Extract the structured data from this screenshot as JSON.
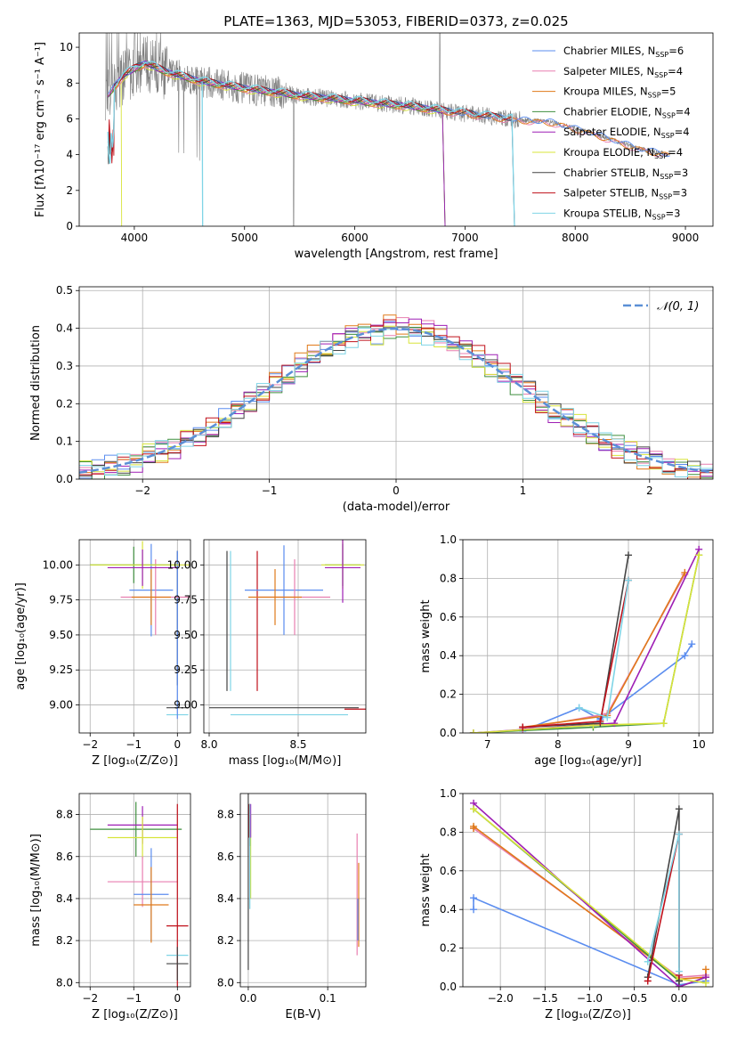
{
  "colors": {
    "chabrier_miles": "#5b8def",
    "salpeter_miles": "#e87fb0",
    "kroupa_miles": "#e07a1a",
    "chabrier_elodie": "#3f8f3f",
    "salpeter_elodie": "#9e1fb5",
    "kroupa_elodie": "#d8e43a",
    "chabrier_stelib": "#444444",
    "salpeter_stelib": "#c0101a",
    "kroupa_stelib": "#7fd4e6",
    "observed": "#808080",
    "gaussian": "#5b8fd6",
    "grid": "#b0b0b0"
  },
  "chart_data": [
    {
      "id": "spectrum",
      "type": "line",
      "title": "PLATE=1363, MJD=53053, FIBERID=0373, z=0.025",
      "xlabel": "wavelength [Angstrom, rest frame]",
      "ylabel": "Flux [fλ10⁻¹⁷ erg cm⁻² s⁻¹ A⁻¹]",
      "xlim": [
        3500,
        9250
      ],
      "ylim": [
        0,
        10.8
      ],
      "xticks": [
        4000,
        5000,
        6000,
        7000,
        8000,
        9000
      ],
      "yticks": [
        0,
        2,
        4,
        6,
        8,
        10
      ],
      "grid": false,
      "legend_position": "top-right",
      "legend": [
        {
          "key": "chabrier_miles",
          "label": "Chabrier MILES, N",
          "sub": "SSP",
          "tail": "=6"
        },
        {
          "key": "salpeter_miles",
          "label": "Salpeter MILES, N",
          "sub": "SSP",
          "tail": "=4"
        },
        {
          "key": "kroupa_miles",
          "label": "Kroupa MILES, N",
          "sub": "SSP",
          "tail": "=5"
        },
        {
          "key": "chabrier_elodie",
          "label": "Chabrier ELODIE, N",
          "sub": "SSP",
          "tail": "=4"
        },
        {
          "key": "salpeter_elodie",
          "label": "Salpeter ELODIE, N",
          "sub": "SSP",
          "tail": "=4"
        },
        {
          "key": "kroupa_elodie",
          "label": "Kroupa ELODIE, N",
          "sub": "SSP",
          "tail": "=4"
        },
        {
          "key": "chabrier_stelib",
          "label": "Chabrier STELIB, N",
          "sub": "SSP",
          "tail": "=3"
        },
        {
          "key": "salpeter_stelib",
          "label": "Salpeter STELIB, N",
          "sub": "SSP",
          "tail": "=3"
        },
        {
          "key": "kroupa_stelib",
          "label": "Kroupa STELIB, N",
          "sub": "SSP",
          "tail": "=3"
        }
      ],
      "observed_trend": {
        "x": [
          3740,
          3900,
          4000,
          4100,
          4300,
          4600,
          5000,
          5500,
          6000,
          6500,
          7000,
          7400,
          7800,
          8200,
          8600,
          8850
        ],
        "y": [
          7.2,
          8.4,
          8.8,
          9.1,
          8.6,
          8.1,
          7.7,
          7.3,
          7.0,
          6.7,
          6.3,
          6.0,
          5.8,
          5.1,
          4.3,
          4.0
        ]
      }
    },
    {
      "id": "residuals",
      "type": "histogram",
      "xlabel": "(data-model)/error",
      "ylabel": "Normed distribution",
      "xlim": [
        -2.5,
        2.5
      ],
      "ylim": [
        0,
        0.51
      ],
      "xticks": [
        -2,
        -1,
        0,
        1,
        2
      ],
      "yticks": [
        0,
        0.1,
        0.2,
        0.3,
        0.4,
        0.5
      ],
      "grid": true,
      "legend_position": "top-right",
      "legend_label": "𝒩(0, 1)",
      "bin_width": 0.1
    },
    {
      "id": "age_vs_z",
      "type": "errorbar",
      "xlabel": "Z [log₁₀(Z/Z⊙)]",
      "ylabel": "age  [log₁₀(age/yr)]",
      "xlim": [
        -2.25,
        0.3
      ],
      "ylim": [
        8.8,
        10.18
      ],
      "xticks": [
        -2,
        -1,
        0
      ],
      "yticks": [
        9.0,
        9.25,
        9.5,
        9.75,
        10.0
      ],
      "grid": true,
      "points": [
        {
          "s": "kroupa_stelib",
          "x": 0.0,
          "y": 8.93,
          "xerr": 0.25,
          "yerr": 0
        },
        {
          "s": "chabrier_stelib",
          "x": 0.0,
          "y": 8.98,
          "xerr": 0.25,
          "yerr": 0
        },
        {
          "s": "chabrier_stelib",
          "x": 0.0,
          "y": 9.62,
          "xerr": 0,
          "yerr": 0.48
        },
        {
          "s": "chabrier_miles",
          "x": 0.0,
          "y": 9.5,
          "xerr": 0,
          "yerr": 0.6
        },
        {
          "s": "chabrier_miles",
          "x": -0.6,
          "y": 9.82,
          "xerr": 0.5,
          "yerr": 0.33
        },
        {
          "s": "salpeter_miles",
          "x": -0.5,
          "y": 9.77,
          "xerr": 0.8,
          "yerr": 0.27
        },
        {
          "s": "kroupa_miles",
          "x": -0.6,
          "y": 9.77,
          "xerr": 0.45,
          "yerr": 0.2
        },
        {
          "s": "chabrier_elodie",
          "x": -1.0,
          "y": 10.0,
          "xerr": 1.0,
          "yerr": 0.13
        },
        {
          "s": "kroupa_elodie",
          "x": -0.8,
          "y": 10.0,
          "xerr": 1.2,
          "yerr": 0.17
        },
        {
          "s": "salpeter_elodie",
          "x": -0.8,
          "y": 9.98,
          "xerr": 0.8,
          "yerr": 0.13
        }
      ]
    },
    {
      "id": "age_vs_mass",
      "type": "errorbar",
      "xlabel": "mass [log₁₀(M/M⊙)]",
      "xlim": [
        7.97,
        8.88
      ],
      "ylim": [
        8.8,
        10.18
      ],
      "xticks": [
        8.0,
        8.5
      ],
      "yticks": [
        9.0,
        9.25,
        9.5,
        9.75,
        10.0
      ],
      "grid": true,
      "points": [
        {
          "s": "chabrier_stelib",
          "x": 8.42,
          "y": 8.98,
          "xerr": 0.42,
          "yerr": 0
        },
        {
          "s": "salpeter_stelib",
          "x": 8.82,
          "y": 8.97,
          "xerr": 0.06,
          "yerr": 0
        },
        {
          "s": "kroupa_stelib",
          "x": 8.45,
          "y": 8.93,
          "xerr": 0.33,
          "yerr": 0
        },
        {
          "s": "kroupa_stelib",
          "x": 8.12,
          "y": 9.6,
          "xerr": 0,
          "yerr": 0.5
        },
        {
          "s": "chabrier_stelib",
          "x": 8.1,
          "y": 9.6,
          "xerr": 0,
          "yerr": 0.5
        },
        {
          "s": "salpeter_stelib",
          "x": 8.27,
          "y": 9.6,
          "xerr": 0,
          "yerr": 0.5
        },
        {
          "s": "chabrier_miles",
          "x": 8.42,
          "y": 9.82,
          "xerr": 0.22,
          "yerr": 0.32
        },
        {
          "s": "salpeter_miles",
          "x": 8.48,
          "y": 9.77,
          "xerr": 0.2,
          "yerr": 0.27
        },
        {
          "s": "kroupa_miles",
          "x": 8.37,
          "y": 9.77,
          "xerr": 0.15,
          "yerr": 0.2
        },
        {
          "s": "chabrier_elodie",
          "x": 8.75,
          "y": 10.0,
          "xerr": 0.1,
          "yerr": 0.15
        },
        {
          "s": "kroupa_elodie",
          "x": 8.75,
          "y": 10.0,
          "xerr": 0.12,
          "yerr": 0.17
        },
        {
          "s": "salpeter_elodie",
          "x": 8.75,
          "y": 9.98,
          "xerr": 0.1,
          "yerr": 0.25
        }
      ]
    },
    {
      "id": "massweight_vs_age",
      "type": "line",
      "xlabel": "age  [log₁₀(age/yr)]",
      "ylabel": "mass weight",
      "xlim": [
        6.65,
        10.2
      ],
      "ylim": [
        0,
        1.0
      ],
      "xticks": [
        7,
        8,
        9,
        10
      ],
      "yticks": [
        0.0,
        0.2,
        0.4,
        0.6,
        0.8,
        1.0
      ],
      "grid": true,
      "series": [
        {
          "s": "chabrier_miles",
          "x": [
            7.5,
            8.3,
            8.6,
            9.8,
            9.9
          ],
          "y": [
            0.01,
            0.13,
            0.07,
            0.4,
            0.46
          ]
        },
        {
          "s": "salpeter_miles",
          "x": [
            7.5,
            8.7,
            9.8
          ],
          "y": [
            0.02,
            0.1,
            0.82
          ]
        },
        {
          "s": "kroupa_miles",
          "x": [
            7.5,
            8.7,
            9.8
          ],
          "y": [
            0.03,
            0.09,
            0.83
          ]
        },
        {
          "s": "chabrier_elodie",
          "x": [
            6.8,
            8.5,
            9.5,
            10.0
          ],
          "y": [
            0.0,
            0.03,
            0.05,
            0.92
          ]
        },
        {
          "s": "salpeter_elodie",
          "x": [
            6.8,
            8.8,
            10.0
          ],
          "y": [
            0.0,
            0.05,
            0.95
          ]
        },
        {
          "s": "kroupa_elodie",
          "x": [
            6.8,
            8.5,
            9.5,
            10.0
          ],
          "y": [
            0.0,
            0.04,
            0.05,
            0.92
          ]
        },
        {
          "s": "chabrier_stelib",
          "x": [
            7.5,
            8.6,
            9.0
          ],
          "y": [
            0.03,
            0.05,
            0.92
          ]
        },
        {
          "s": "salpeter_stelib",
          "x": [
            7.5,
            8.6,
            9.0
          ],
          "y": [
            0.03,
            0.06,
            0.79
          ]
        },
        {
          "s": "kroupa_stelib",
          "x": [
            8.3,
            8.7,
            9.0
          ],
          "y": [
            0.13,
            0.08,
            0.79
          ]
        }
      ]
    },
    {
      "id": "mass_vs_z",
      "type": "errorbar",
      "xlabel": "Z [log₁₀(Z/Z⊙)]",
      "ylabel": "mass [log₁₀(M/M⊙)]",
      "xlim": [
        -2.25,
        0.3
      ],
      "ylim": [
        7.98,
        8.9
      ],
      "xticks": [
        -2,
        -1,
        0
      ],
      "yticks": [
        8.0,
        8.2,
        8.4,
        8.6,
        8.8
      ],
      "grid": true,
      "points": [
        {
          "s": "chabrier_elodie",
          "x": -0.95,
          "y": 8.73,
          "xerr": 1.05,
          "yerr": 0.13
        },
        {
          "s": "salpeter_elodie",
          "x": -0.8,
          "y": 8.75,
          "xerr": 0.8,
          "yerr": 0.09
        },
        {
          "s": "kroupa_elodie",
          "x": -0.8,
          "y": 8.69,
          "xerr": 0.8,
          "yerr": 0.1
        },
        {
          "s": "salpeter_miles",
          "x": -0.8,
          "y": 8.48,
          "xerr": 0.8,
          "yerr": 0.12
        },
        {
          "s": "chabrier_miles",
          "x": -0.6,
          "y": 8.42,
          "xerr": 0.4,
          "yerr": 0.22
        },
        {
          "s": "kroupa_miles",
          "x": -0.6,
          "y": 8.37,
          "xerr": 0.4,
          "yerr": 0.18
        },
        {
          "s": "salpeter_stelib",
          "x": 0.0,
          "y": 8.27,
          "xerr": 0.25,
          "yerr": 0.58
        },
        {
          "s": "kroupa_stelib",
          "x": 0.0,
          "y": 8.13,
          "xerr": 0.25,
          "yerr": 0
        },
        {
          "s": "chabrier_stelib",
          "x": 0.0,
          "y": 8.09,
          "xerr": 0.25,
          "yerr": 0.08
        }
      ]
    },
    {
      "id": "mass_vs_ebv",
      "type": "errorbar",
      "xlabel": "E(B-V)",
      "xlim": [
        -0.01,
        0.148
      ],
      "ylim": [
        7.98,
        8.9
      ],
      "xticks": [
        0.0,
        0.1
      ],
      "yticks": [
        8.0,
        8.2,
        8.4,
        8.6,
        8.8
      ],
      "grid": true,
      "points": [
        {
          "s": "kroupa_elodie",
          "x": 0.003,
          "y": 8.6,
          "xerr": 0,
          "yerr": 0.2
        },
        {
          "s": "chabrier_elodie",
          "x": 0.002,
          "y": 8.75,
          "xerr": 0,
          "yerr": 0.1
        },
        {
          "s": "salpeter_elodie",
          "x": 0.003,
          "y": 8.77,
          "xerr": 0,
          "yerr": 0.08
        },
        {
          "s": "salpeter_stelib",
          "x": 0.001,
          "y": 8.77,
          "xerr": 0,
          "yerr": 0.08
        },
        {
          "s": "chabrier_stelib",
          "x": 0.0,
          "y": 8.5,
          "xerr": 0,
          "yerr": 0.44
        },
        {
          "s": "kroupa_stelib",
          "x": 0.002,
          "y": 8.6,
          "xerr": 0,
          "yerr": 0.25
        },
        {
          "s": "salpeter_miles",
          "x": 0.137,
          "y": 8.42,
          "xerr": 0,
          "yerr": 0.29
        },
        {
          "s": "kroupa_miles",
          "x": 0.139,
          "y": 8.37,
          "xerr": 0,
          "yerr": 0.2
        },
        {
          "s": "chabrier_miles",
          "x": 0.138,
          "y": 8.3,
          "xerr": 0,
          "yerr": 0.1
        }
      ]
    },
    {
      "id": "massweight_vs_z",
      "type": "line",
      "xlabel": "Z [log₁₀(Z/Z⊙)]",
      "ylabel": "mass weight",
      "xlim": [
        -2.42,
        0.38
      ],
      "ylim": [
        0,
        1.0
      ],
      "xticks": [
        -2.0,
        -1.5,
        -1.0,
        -0.5,
        0.0
      ],
      "yticks": [
        0.0,
        0.2,
        0.4,
        0.6,
        0.8,
        1.0
      ],
      "grid": true,
      "series": [
        {
          "s": "chabrier_miles",
          "x": [
            -2.3,
            -2.3,
            0.0,
            0.3,
            0.3
          ],
          "y": [
            0.4,
            0.46,
            0.01,
            0.03,
            0.05
          ]
        },
        {
          "s": "salpeter_miles",
          "x": [
            -2.3,
            0.0,
            0.3
          ],
          "y": [
            0.82,
            0.05,
            0.06
          ]
        },
        {
          "s": "kroupa_miles",
          "x": [
            -2.3,
            -2.3,
            0.0,
            0.3,
            0.3
          ],
          "y": [
            0.82,
            0.83,
            0.04,
            0.05,
            0.09
          ]
        },
        {
          "s": "chabrier_elodie",
          "x": [
            -2.3,
            0.0,
            0.0,
            0.3
          ],
          "y": [
            0.92,
            0.03,
            0.0,
            0.05
          ]
        },
        {
          "s": "salpeter_elodie",
          "x": [
            -2.3,
            0.0,
            0.3
          ],
          "y": [
            0.95,
            0.0,
            0.05
          ]
        },
        {
          "s": "kroupa_elodie",
          "x": [
            -2.3,
            0.0,
            0.3
          ],
          "y": [
            0.92,
            0.04,
            0.02
          ]
        },
        {
          "s": "chabrier_stelib",
          "x": [
            -0.35,
            0.0,
            0.0
          ],
          "y": [
            0.05,
            0.92,
            0.03
          ]
        },
        {
          "s": "salpeter_stelib",
          "x": [
            -0.35,
            0.0,
            0.0
          ],
          "y": [
            0.03,
            0.79,
            0.06
          ]
        },
        {
          "s": "kroupa_stelib",
          "x": [
            -0.35,
            0.0,
            0.0
          ],
          "y": [
            0.13,
            0.79,
            0.08
          ]
        }
      ]
    }
  ]
}
